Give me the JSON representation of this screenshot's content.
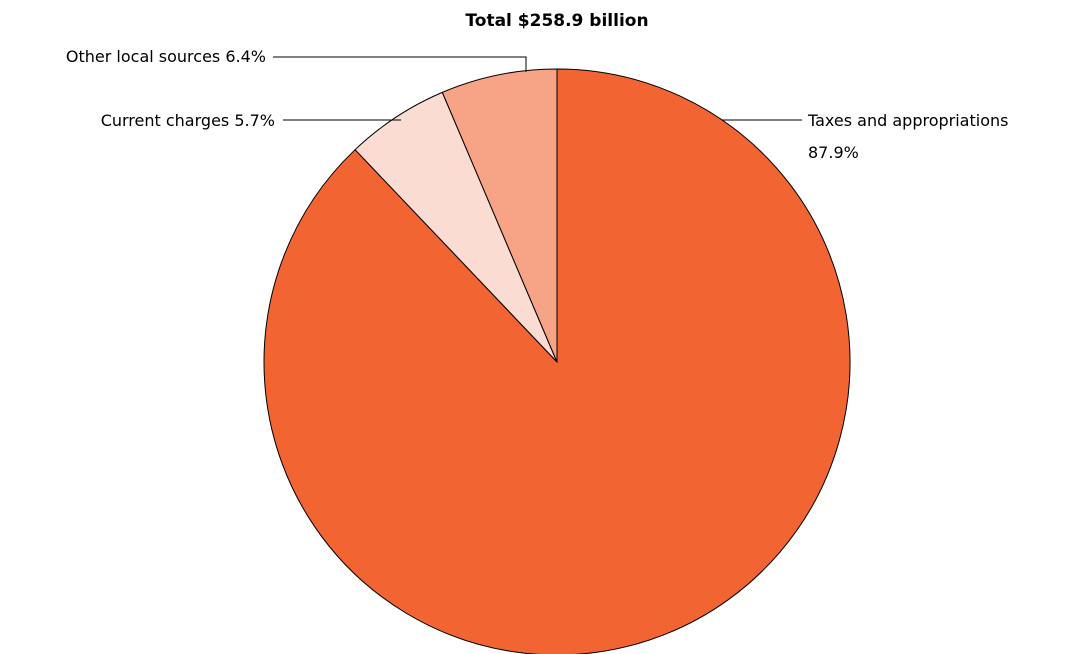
{
  "chart_data": {
    "type": "pie",
    "title": "Total $258.9 billion",
    "slices": [
      {
        "label": "Taxes and appropriations",
        "value_label": "87.9%",
        "value": 87.9,
        "color": "#F26532"
      },
      {
        "label": "Current charges",
        "value_label": "5.7%",
        "value": 5.7,
        "color": "#FBDCD2"
      },
      {
        "label": "Other local sources",
        "value_label": "6.4%",
        "value": 6.4,
        "color": "#F6A485"
      }
    ]
  }
}
